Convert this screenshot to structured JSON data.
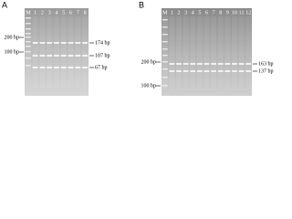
{
  "panels": [
    {
      "label": "A",
      "lanes": [
        "M",
        "1",
        "2",
        "3",
        "4",
        "5",
        "6",
        "7",
        "8"
      ],
      "left_markers": [
        "200 bp",
        "100 bp"
      ],
      "right_markers": [
        "174 bp",
        "107 bp",
        "67 bp"
      ]
    },
    {
      "label": "B",
      "lanes": [
        "M",
        "1",
        "2",
        "3",
        "4",
        "5",
        "6",
        "7",
        "8",
        "9",
        "10",
        "11",
        "12"
      ],
      "left_markers": [
        "200 bp",
        "100 bp"
      ],
      "right_markers": [
        "163 bp",
        "137 bp"
      ]
    }
  ]
}
